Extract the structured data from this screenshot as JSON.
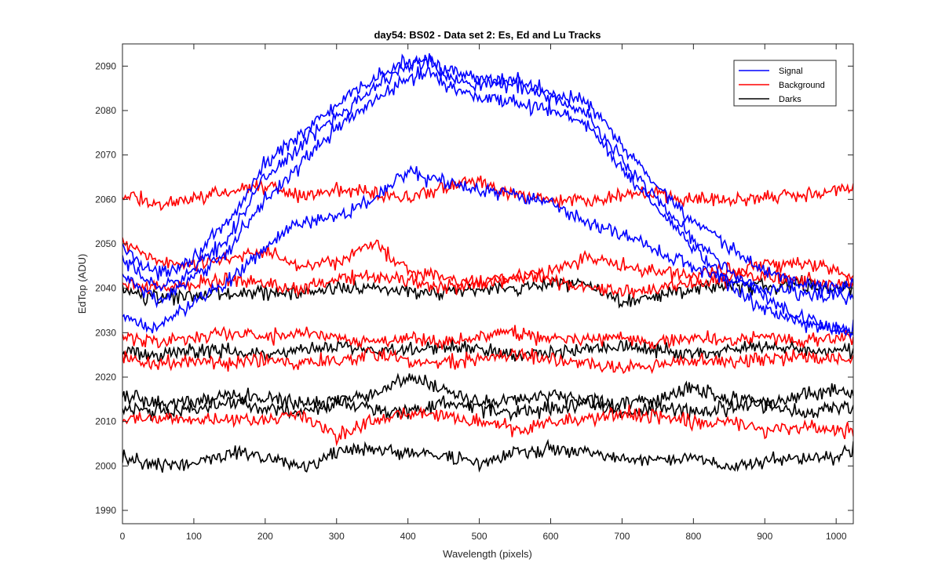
{
  "chart_data": {
    "type": "line",
    "title": "day54: BS02 - Data set 2: Es, Ed and Lu Tracks",
    "xlabel": "Wavelength (pixels)",
    "ylabel": "EdTop (ADU)",
    "xlim": [
      0,
      1024
    ],
    "ylim": [
      1987,
      2095
    ],
    "xticks": [
      0,
      100,
      200,
      300,
      400,
      500,
      600,
      700,
      800,
      900,
      1000
    ],
    "yticks": [
      1990,
      2000,
      2010,
      2020,
      2030,
      2040,
      2050,
      2060,
      2070,
      2080,
      2090
    ],
    "grid": false,
    "legend_position": "top-right",
    "legend": [
      {
        "label": "Signal",
        "color": "#0000ff"
      },
      {
        "label": "Background",
        "color": "#ff0000"
      },
      {
        "label": "Darks",
        "color": "#000000"
      }
    ],
    "series": [
      {
        "group": "Signal",
        "color": "#0000ff",
        "x": [
          0,
          50,
          100,
          150,
          200,
          250,
          300,
          350,
          400,
          430,
          450,
          500,
          550,
          600,
          650,
          700,
          750,
          800,
          850,
          900,
          950,
          1000,
          1024
        ],
        "y": [
          2049,
          2043,
          2047,
          2055,
          2068,
          2075,
          2081,
          2087,
          2091,
          2092,
          2089,
          2087,
          2087,
          2084,
          2082,
          2072,
          2063,
          2055,
          2049,
          2044,
          2041,
          2040,
          2041
        ]
      },
      {
        "group": "Signal",
        "color": "#0000ff",
        "x": [
          0,
          50,
          100,
          150,
          200,
          250,
          300,
          350,
          400,
          430,
          450,
          500,
          550,
          600,
          650,
          700,
          750,
          800,
          850,
          900,
          950,
          1000,
          1024
        ],
        "y": [
          2046,
          2040,
          2044,
          2052,
          2065,
          2072,
          2079,
          2085,
          2090,
          2091,
          2088,
          2086,
          2086,
          2083,
          2079,
          2069,
          2060,
          2051,
          2044,
          2038,
          2033,
          2031,
          2030
        ]
      },
      {
        "group": "Signal",
        "color": "#0000ff",
        "x": [
          0,
          50,
          100,
          150,
          200,
          250,
          300,
          350,
          400,
          430,
          450,
          500,
          550,
          600,
          650,
          700,
          750,
          800,
          850,
          900,
          950,
          1000,
          1024
        ],
        "y": [
          2043,
          2037,
          2042,
          2049,
          2060,
          2068,
          2076,
          2082,
          2087,
          2089,
          2086,
          2083,
          2082,
          2080,
          2077,
          2067,
          2058,
          2049,
          2041,
          2035,
          2032,
          2031,
          2031
        ]
      },
      {
        "group": "Signal",
        "color": "#0000ff",
        "x": [
          0,
          50,
          100,
          150,
          200,
          250,
          300,
          350,
          400,
          450,
          500,
          550,
          600,
          650,
          700,
          750,
          800,
          850,
          900,
          950,
          1000,
          1024
        ],
        "y": [
          2033,
          2031,
          2037,
          2042,
          2049,
          2055,
          2056,
          2060,
          2066,
          2064,
          2062,
          2061,
          2059,
          2055,
          2052,
          2048,
          2045,
          2042,
          2040,
          2039,
          2038,
          2038
        ]
      },
      {
        "group": "Background",
        "color": "#ff0000",
        "x": [
          0,
          50,
          100,
          150,
          200,
          250,
          300,
          350,
          400,
          450,
          500,
          550,
          600,
          650,
          700,
          750,
          800,
          850,
          900,
          950,
          1000,
          1024
        ],
        "y": [
          2061,
          2059,
          2060,
          2062,
          2063,
          2061,
          2062,
          2062,
          2060,
          2063,
          2064,
          2061,
          2060,
          2060,
          2061,
          2061,
          2060,
          2060,
          2061,
          2061,
          2062,
          2063
        ]
      },
      {
        "group": "Background",
        "color": "#ff0000",
        "x": [
          0,
          50,
          100,
          150,
          200,
          250,
          300,
          350,
          400,
          450,
          500,
          550,
          600,
          650,
          700,
          750,
          800,
          850,
          900,
          950,
          1000,
          1024
        ],
        "y": [
          2050,
          2046,
          2045,
          2047,
          2048,
          2045,
          2046,
          2050,
          2044,
          2043,
          2041,
          2042,
          2044,
          2047,
          2045,
          2044,
          2043,
          2044,
          2045,
          2046,
          2044,
          2043
        ]
      },
      {
        "group": "Background",
        "color": "#ff0000",
        "x": [
          0,
          50,
          100,
          150,
          200,
          250,
          300,
          350,
          400,
          450,
          500,
          550,
          600,
          650,
          700,
          750,
          800,
          850,
          900,
          950,
          1000,
          1024
        ],
        "y": [
          2041,
          2040,
          2041,
          2042,
          2041,
          2040,
          2042,
          2043,
          2042,
          2040,
          2041,
          2043,
          2042,
          2040,
          2039,
          2040,
          2041,
          2042,
          2043,
          2042,
          2041,
          2041
        ]
      },
      {
        "group": "Background",
        "color": "#ff0000",
        "x": [
          0,
          50,
          100,
          150,
          200,
          250,
          300,
          350,
          400,
          450,
          500,
          550,
          600,
          650,
          700,
          750,
          800,
          850,
          900,
          950,
          1000,
          1024
        ],
        "y": [
          2029,
          2028,
          2029,
          2030,
          2029,
          2030,
          2029,
          2028,
          2029,
          2028,
          2029,
          2030,
          2029,
          2028,
          2029,
          2028,
          2029,
          2028,
          2029,
          2028,
          2029,
          2029
        ]
      },
      {
        "group": "Background",
        "color": "#ff0000",
        "x": [
          0,
          50,
          100,
          150,
          200,
          250,
          300,
          350,
          400,
          450,
          500,
          550,
          600,
          650,
          700,
          750,
          800,
          850,
          900,
          950,
          1000,
          1024
        ],
        "y": [
          2024,
          2023,
          2024,
          2023,
          2024,
          2023,
          2024,
          2025,
          2024,
          2023,
          2024,
          2025,
          2024,
          2023,
          2022,
          2023,
          2024,
          2023,
          2024,
          2025,
          2024,
          2024
        ]
      },
      {
        "group": "Background",
        "color": "#ff0000",
        "x": [
          0,
          50,
          100,
          150,
          200,
          250,
          300,
          350,
          400,
          450,
          500,
          550,
          600,
          650,
          700,
          750,
          800,
          850,
          900,
          950,
          1000,
          1024
        ],
        "y": [
          2010,
          2011,
          2010,
          2011,
          2010,
          2012,
          2007,
          2010,
          2012,
          2011,
          2010,
          2008,
          2010,
          2010,
          2012,
          2011,
          2010,
          2010,
          2008,
          2009,
          2008,
          2008
        ]
      },
      {
        "group": "Darks",
        "color": "#000000",
        "x": [
          0,
          50,
          100,
          150,
          200,
          250,
          300,
          350,
          400,
          450,
          500,
          550,
          600,
          650,
          700,
          750,
          800,
          850,
          900,
          950,
          1000,
          1024
        ],
        "y": [
          2039,
          2038,
          2038,
          2039,
          2039,
          2039,
          2040,
          2040,
          2039,
          2039,
          2040,
          2040,
          2041,
          2041,
          2037,
          2038,
          2040,
          2041,
          2040,
          2041,
          2040,
          2040
        ]
      },
      {
        "group": "Darks",
        "color": "#000000",
        "x": [
          0,
          50,
          100,
          150,
          200,
          250,
          300,
          350,
          400,
          450,
          500,
          550,
          600,
          650,
          700,
          750,
          800,
          850,
          900,
          950,
          1000,
          1024
        ],
        "y": [
          2026,
          2025,
          2026,
          2026,
          2025,
          2026,
          2027,
          2026,
          2026,
          2027,
          2026,
          2025,
          2026,
          2026,
          2027,
          2026,
          2025,
          2026,
          2027,
          2026,
          2026,
          2026
        ]
      },
      {
        "group": "Darks",
        "color": "#000000",
        "x": [
          0,
          50,
          100,
          150,
          200,
          250,
          300,
          350,
          400,
          450,
          500,
          550,
          600,
          650,
          700,
          750,
          800,
          850,
          900,
          950,
          1000,
          1024
        ],
        "y": [
          2016,
          2014,
          2015,
          2016,
          2015,
          2014,
          2015,
          2016,
          2020,
          2017,
          2014,
          2015,
          2016,
          2015,
          2014,
          2015,
          2018,
          2015,
          2014,
          2016,
          2017,
          2016
        ]
      },
      {
        "group": "Darks",
        "color": "#000000",
        "x": [
          0,
          50,
          100,
          150,
          200,
          250,
          300,
          350,
          400,
          450,
          500,
          550,
          600,
          650,
          700,
          750,
          800,
          850,
          900,
          950,
          1000,
          1024
        ],
        "y": [
          2013,
          2012,
          2013,
          2014,
          2013,
          2012,
          2014,
          2013,
          2012,
          2014,
          2013,
          2012,
          2013,
          2014,
          2012,
          2013,
          2012,
          2013,
          2014,
          2012,
          2013,
          2013
        ]
      },
      {
        "group": "Darks",
        "color": "#000000",
        "x": [
          0,
          50,
          100,
          150,
          200,
          250,
          300,
          350,
          400,
          450,
          500,
          550,
          600,
          650,
          700,
          750,
          800,
          850,
          900,
          950,
          1000,
          1024
        ],
        "y": [
          2002,
          2000,
          2001,
          2003,
          2002,
          2000,
          2003,
          2004,
          2003,
          2002,
          2001,
          2003,
          2004,
          2003,
          2002,
          2001,
          2002,
          2000,
          2001,
          2002,
          2002,
          2004
        ]
      }
    ]
  }
}
